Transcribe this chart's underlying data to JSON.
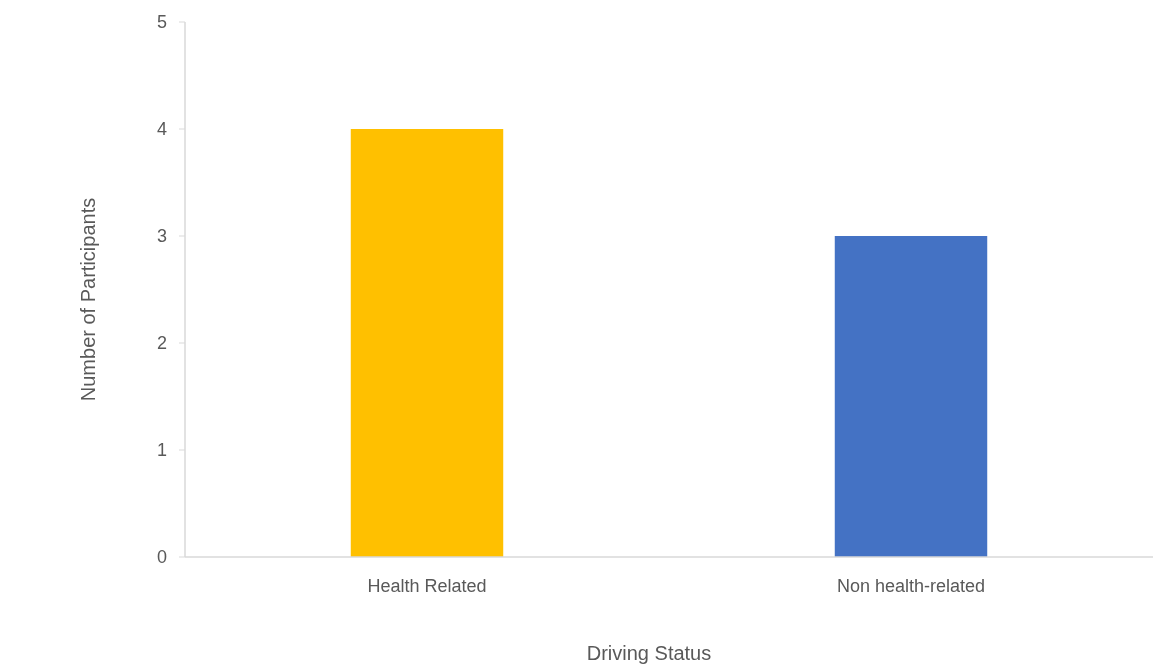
{
  "chart_data": {
    "type": "bar",
    "xlabel": "Driving Status",
    "ylabel": "Number of Participants",
    "categories": [
      "Health Related",
      "Non health-related"
    ],
    "values": [
      4,
      3
    ],
    "colors": [
      "#ffc000",
      "#4472c4"
    ],
    "ylim": [
      0,
      5
    ],
    "yticks": [
      0,
      1,
      2,
      3,
      4,
      5
    ],
    "grid": false
  }
}
